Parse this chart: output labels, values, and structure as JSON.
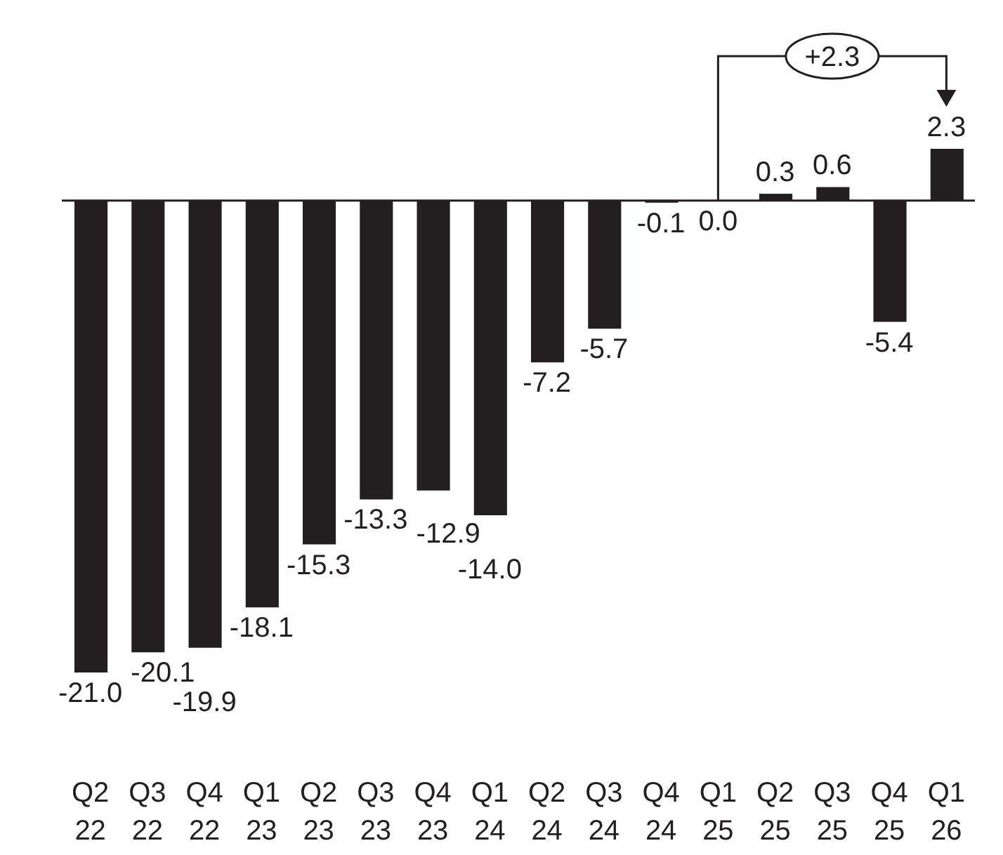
{
  "chart_data": {
    "type": "bar",
    "categories": [
      "Q2 22",
      "Q3 22",
      "Q4 22",
      "Q1 23",
      "Q2 23",
      "Q3 23",
      "Q4 23",
      "Q1 24",
      "Q2 24",
      "Q3 24",
      "Q4 24",
      "Q1 25",
      "Q2 25",
      "Q3 25",
      "Q4 25",
      "Q1 26"
    ],
    "values": [
      -21.0,
      -20.1,
      -19.9,
      -18.1,
      -15.3,
      -13.3,
      -12.9,
      -14.0,
      -7.2,
      -5.7,
      -0.1,
      0.0,
      0.3,
      0.6,
      -5.4,
      2.3
    ],
    "value_labels": [
      "-21.0",
      "-20.1",
      "-19.9",
      "-18.1",
      "-15.3",
      "-13.3",
      "-12.9",
      "-14.0",
      "-7.2",
      "-5.7",
      "-0.1",
      "0.0",
      "0.3",
      "0.6",
      "-5.4",
      "2.3"
    ],
    "color": "#231f20",
    "tick_labels": "x",
    "annotations": [
      "+2.3"
    ]
  }
}
